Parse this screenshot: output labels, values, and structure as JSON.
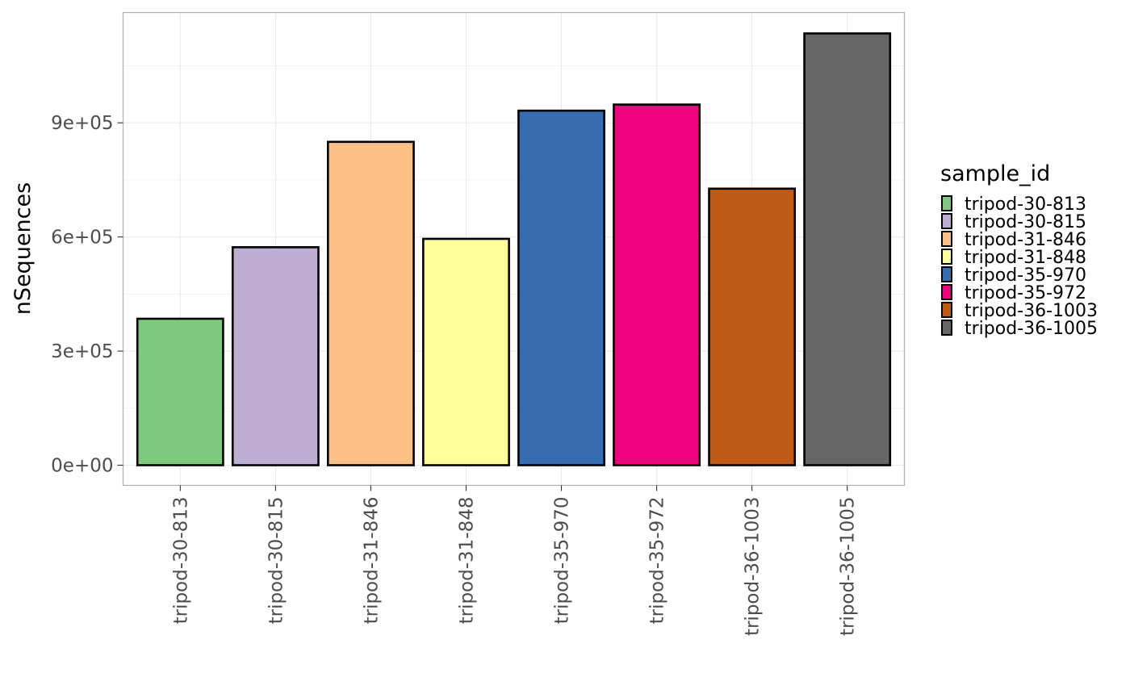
{
  "chart_data": {
    "type": "bar",
    "title": "",
    "xlabel": "",
    "ylabel": "nSequences",
    "categories": [
      "tripod-30-813",
      "tripod-30-815",
      "tripod-31-846",
      "tripod-31-848",
      "tripod-35-970",
      "tripod-35-972",
      "tripod-36-1003",
      "tripod-36-1005"
    ],
    "values": [
      385000,
      573000,
      850000,
      595000,
      932000,
      948000,
      727000,
      1135000
    ],
    "colors": [
      "#7fc97f",
      "#beaed4",
      "#fdc086",
      "#ffff99",
      "#386cb0",
      "#f0027f",
      "#bf5b17",
      "#666666"
    ],
    "ylim": [
      -53000,
      1190000
    ],
    "yticks": [
      0,
      300000,
      600000,
      900000
    ],
    "ytick_labels": [
      "0e+00",
      "3e+05",
      "6e+05",
      "9e+05"
    ],
    "grid": true,
    "legend": {
      "title": "sample_id",
      "position": "right",
      "labels": [
        "tripod-30-813",
        "tripod-30-815",
        "tripod-31-846",
        "tripod-31-848",
        "tripod-35-970",
        "tripod-35-972",
        "tripod-36-1003",
        "tripod-36-1005"
      ]
    }
  }
}
